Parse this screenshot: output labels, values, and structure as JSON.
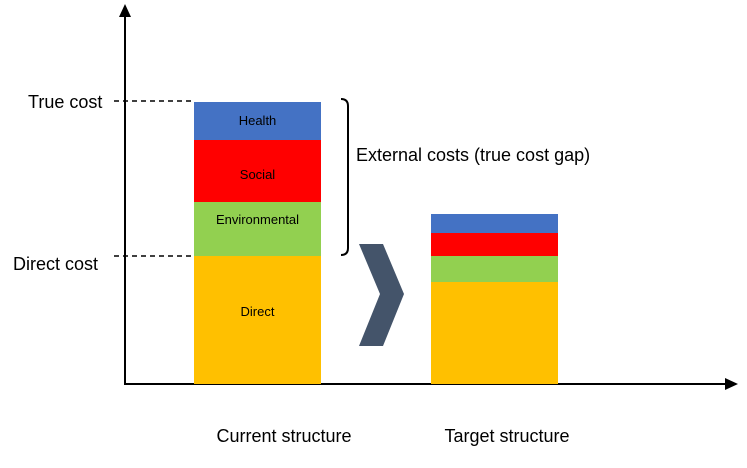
{
  "y_levels": {
    "true_cost": "True cost",
    "direct_cost": "Direct cost"
  },
  "bracket_label": "External costs (true cost gap)",
  "columns": [
    {
      "label": "Current structure",
      "segments": [
        {
          "label": "Direct",
          "color": "#FFC000"
        },
        {
          "label": "Environmental",
          "color": "#92D050"
        },
        {
          "label": "Social",
          "color": "#FF0000"
        },
        {
          "label": "Health",
          "color": "#4472C4"
        }
      ]
    },
    {
      "label": "Target structure",
      "segments": [
        {
          "label": "",
          "color": "#FFC000"
        },
        {
          "label": "",
          "color": "#92D050"
        },
        {
          "label": "",
          "color": "#FF0000"
        },
        {
          "label": "",
          "color": "#4472C4"
        }
      ]
    }
  ],
  "arrow_color": "#44546A",
  "icons": {
    "transition": "chevron-right-icon"
  }
}
